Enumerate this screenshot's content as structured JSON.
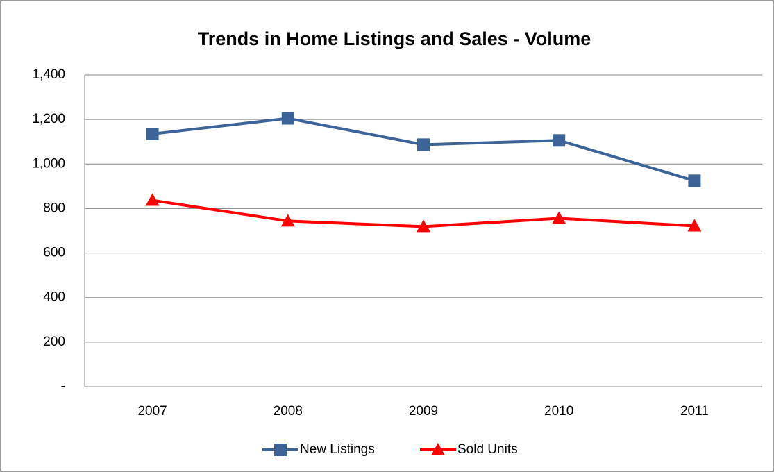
{
  "chart_data": {
    "type": "line",
    "title": "Trends in Home Listings and Sales - Volume",
    "categories": [
      "2007",
      "2008",
      "2009",
      "2010",
      "2011"
    ],
    "series": [
      {
        "name": "New Listings",
        "color": "#3c6499",
        "marker": "square",
        "values": [
          1135,
          1205,
          1087,
          1106,
          925
        ]
      },
      {
        "name": "Sold Units",
        "color": "#ff0000",
        "marker": "triangle",
        "values": [
          837,
          744,
          719,
          756,
          722
        ]
      }
    ],
    "ylim": [
      0,
      1400
    ],
    "yticks": [
      {
        "value": 0,
        "label": "-"
      },
      200,
      400,
      600,
      800,
      {
        "value": 1000,
        "label": "1,000"
      },
      {
        "value": 1200,
        "label": "1,200"
      },
      {
        "value": 1400,
        "label": "1,400"
      }
    ],
    "grid": true,
    "legend": "bottom"
  }
}
